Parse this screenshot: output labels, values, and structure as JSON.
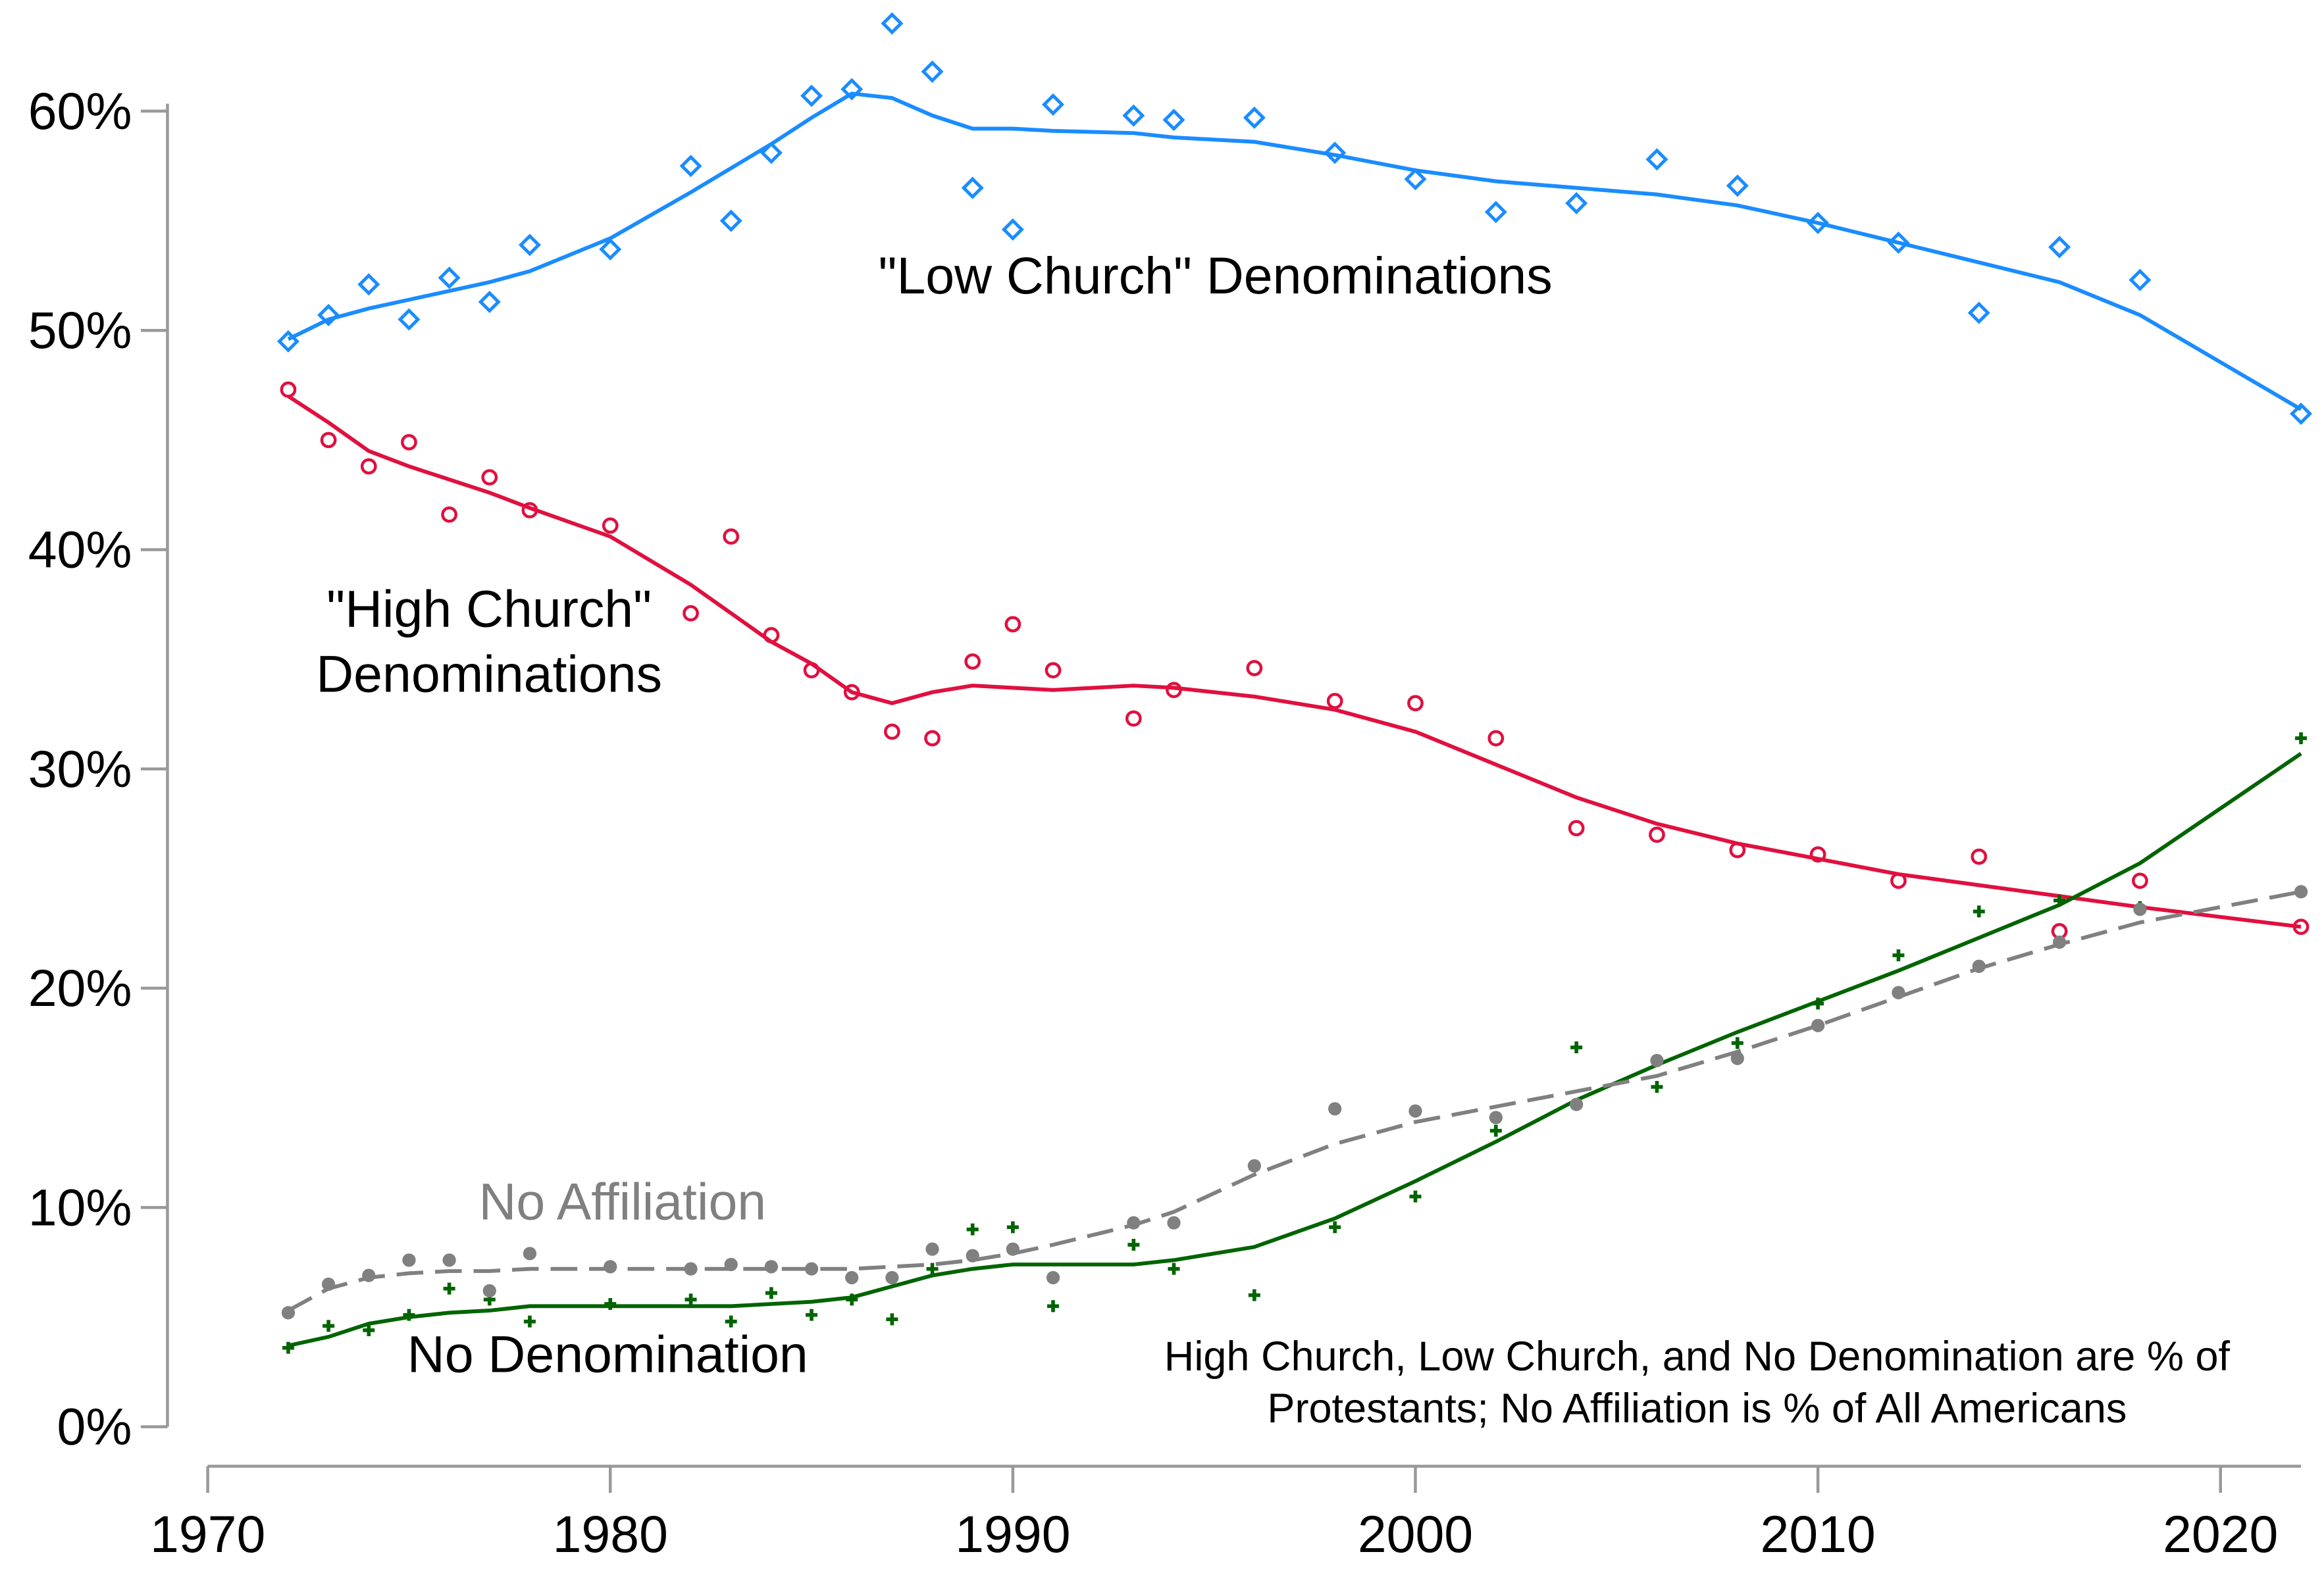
{
  "chart_data": {
    "type": "scatter-trend",
    "x": [
      1972,
      1973,
      1974,
      1975,
      1976,
      1977,
      1978,
      1980,
      1982,
      1983,
      1984,
      1985,
      1986,
      1987,
      1988,
      1989,
      1990,
      1991,
      1993,
      1994,
      1996,
      1998,
      2000,
      2002,
      2004,
      2006,
      2008,
      2010,
      2012,
      2014,
      2016,
      2018,
      2022
    ],
    "xlim": [
      1969,
      2023
    ],
    "xticks": [
      1970,
      1980,
      1990,
      2000,
      2010,
      2020
    ],
    "ylim": [
      -1.8,
      60.5
    ],
    "yticks": [
      {
        "value": 0,
        "label": "0%"
      },
      {
        "value": 10,
        "label": "10%"
      },
      {
        "value": 20,
        "label": "20%"
      },
      {
        "value": 30,
        "label": "30%"
      },
      {
        "value": 40,
        "label": "40%"
      },
      {
        "value": 50,
        "label": "50%"
      },
      {
        "value": 60,
        "label": "60%"
      }
    ],
    "series": [
      {
        "name": "\"Low Church\" Denominations",
        "color": "#1a8cff",
        "marker": "diamond",
        "dash": false,
        "values": [
          49.5,
          50.7,
          52.1,
          50.5,
          52.4,
          51.3,
          53.9,
          53.7,
          57.5,
          55.0,
          58.1,
          60.7,
          61.0,
          64.0,
          61.8,
          56.5,
          54.6,
          60.3,
          59.8,
          59.6,
          59.7,
          58.1,
          56.9,
          55.4,
          55.8,
          57.8,
          56.6,
          54.9,
          54.0,
          50.8,
          53.8,
          52.3,
          46.2
        ],
        "trend": [
          49.6,
          50.5,
          51.0,
          51.4,
          51.8,
          52.2,
          52.7,
          54.2,
          56.3,
          57.4,
          58.5,
          59.7,
          60.8,
          60.6,
          59.8,
          59.2,
          59.2,
          59.1,
          59.0,
          58.8,
          58.6,
          58.0,
          57.3,
          56.8,
          56.5,
          56.2,
          55.7,
          54.9,
          54.0,
          53.1,
          52.2,
          50.7,
          46.4
        ]
      },
      {
        "name": "\"High Church\" Denominations",
        "color": "#e0103f",
        "marker": "circle",
        "dash": false,
        "values": [
          47.3,
          45.0,
          43.8,
          44.9,
          41.6,
          43.3,
          41.8,
          41.1,
          37.1,
          40.6,
          36.1,
          34.5,
          33.5,
          31.7,
          31.4,
          34.9,
          36.6,
          34.5,
          32.3,
          33.6,
          34.6,
          33.1,
          33.0,
          31.4,
          27.3,
          27.0,
          26.3,
          26.1,
          24.9,
          26.0,
          22.6,
          24.9,
          22.8
        ],
        "trend": [
          47.0,
          45.8,
          44.5,
          43.8,
          43.2,
          42.6,
          41.9,
          40.6,
          38.4,
          37.1,
          35.8,
          34.8,
          33.5,
          33.0,
          33.5,
          33.8,
          33.7,
          33.6,
          33.8,
          33.7,
          33.3,
          32.7,
          31.7,
          30.2,
          28.7,
          27.5,
          26.6,
          25.9,
          25.2,
          24.7,
          24.2,
          23.7,
          22.8
        ]
      },
      {
        "name": "No Denomination",
        "color": "#006400",
        "marker": "plus",
        "dash": false,
        "values": [
          3.6,
          4.6,
          4.4,
          5.1,
          6.3,
          5.8,
          4.8,
          5.6,
          5.8,
          4.8,
          6.1,
          5.1,
          5.8,
          4.9,
          7.2,
          9.0,
          9.1,
          5.5,
          8.3,
          7.2,
          6.0,
          9.1,
          10.5,
          13.5,
          17.3,
          15.5,
          17.5,
          19.3,
          21.5,
          23.5,
          24.0,
          23.7,
          31.4
        ],
        "trend": [
          3.7,
          4.1,
          4.7,
          5.0,
          5.2,
          5.3,
          5.5,
          5.5,
          5.5,
          5.5,
          5.6,
          5.7,
          5.9,
          6.4,
          6.9,
          7.2,
          7.4,
          7.4,
          7.4,
          7.6,
          8.2,
          9.5,
          11.2,
          13.0,
          14.9,
          16.5,
          18.0,
          19.4,
          20.8,
          22.3,
          23.8,
          25.7,
          30.7
        ]
      },
      {
        "name": "No Affiliation",
        "color": "#808080",
        "marker": "dot",
        "dash": true,
        "values": [
          5.2,
          6.5,
          6.9,
          7.6,
          7.6,
          6.2,
          7.9,
          7.3,
          7.2,
          7.4,
          7.3,
          7.2,
          6.8,
          6.8,
          8.1,
          7.8,
          8.1,
          6.8,
          9.3,
          9.3,
          11.9,
          14.5,
          14.4,
          14.1,
          14.7,
          16.7,
          16.8,
          18.3,
          19.8,
          21.0,
          22.1,
          23.6,
          24.4
        ],
        "trend": [
          5.3,
          6.3,
          6.8,
          7.0,
          7.1,
          7.1,
          7.2,
          7.2,
          7.2,
          7.2,
          7.2,
          7.2,
          7.2,
          7.3,
          7.4,
          7.6,
          7.9,
          8.3,
          9.2,
          9.8,
          11.5,
          12.9,
          13.9,
          14.6,
          15.3,
          16.0,
          17.1,
          18.3,
          19.6,
          20.9,
          22.0,
          23.0,
          24.4
        ]
      }
    ],
    "note": "High Church, Low Church, and No Denomination are % of Protestants; No Affiliation is % of All Americans"
  }
}
